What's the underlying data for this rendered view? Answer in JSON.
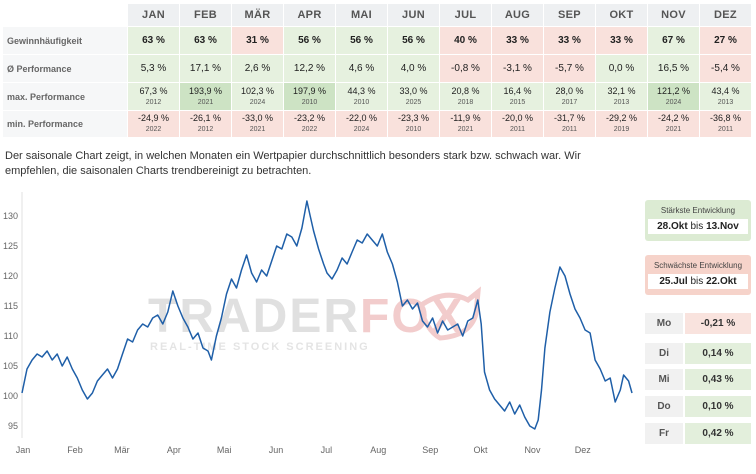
{
  "table": {
    "months": [
      "JAN",
      "FEB",
      "MÄR",
      "APR",
      "MAI",
      "JUN",
      "JUL",
      "AUG",
      "SEP",
      "OKT",
      "NOV",
      "DEZ"
    ],
    "rows": [
      {
        "label": "Gewinnhäufigkeit",
        "cells": [
          {
            "v": "63 %",
            "t": "g"
          },
          {
            "v": "63 %",
            "t": "g"
          },
          {
            "v": "31 %",
            "t": "r"
          },
          {
            "v": "56 %",
            "t": "g"
          },
          {
            "v": "56 %",
            "t": "g"
          },
          {
            "v": "56 %",
            "t": "g"
          },
          {
            "v": "40 %",
            "t": "r"
          },
          {
            "v": "33 %",
            "t": "r"
          },
          {
            "v": "33 %",
            "t": "r"
          },
          {
            "v": "33 %",
            "t": "r"
          },
          {
            "v": "67 %",
            "t": "g"
          },
          {
            "v": "27 %",
            "t": "r"
          }
        ]
      },
      {
        "label": "Ø Performance",
        "cells": [
          {
            "v": "5,3 %",
            "t": "g"
          },
          {
            "v": "17,1 %",
            "t": "g"
          },
          {
            "v": "2,6 %",
            "t": "g"
          },
          {
            "v": "12,2 %",
            "t": "g"
          },
          {
            "v": "4,6 %",
            "t": "g"
          },
          {
            "v": "4,0 %",
            "t": "g"
          },
          {
            "v": "-0,8 %",
            "t": "r"
          },
          {
            "v": "-3,1 %",
            "t": "r"
          },
          {
            "v": "-5,7 %",
            "t": "r"
          },
          {
            "v": "0,0 %",
            "t": "g"
          },
          {
            "v": "16,5 %",
            "t": "g"
          },
          {
            "v": "-5,4 %",
            "t": "r"
          }
        ]
      },
      {
        "label": "max. Performance",
        "cells": [
          {
            "v": "67,3 %",
            "y": "2012",
            "t": "g"
          },
          {
            "v": "193,9 %",
            "y": "2021",
            "t": "gs"
          },
          {
            "v": "102,3 %",
            "y": "2024",
            "t": "g"
          },
          {
            "v": "197,9 %",
            "y": "2010",
            "t": "gs"
          },
          {
            "v": "44,3 %",
            "y": "2010",
            "t": "g"
          },
          {
            "v": "33,0 %",
            "y": "2025",
            "t": "g"
          },
          {
            "v": "20,8 %",
            "y": "2018",
            "t": "g"
          },
          {
            "v": "16,4 %",
            "y": "2015",
            "t": "g"
          },
          {
            "v": "28,0 %",
            "y": "2017",
            "t": "g"
          },
          {
            "v": "32,1 %",
            "y": "2013",
            "t": "g"
          },
          {
            "v": "121,2 %",
            "y": "2024",
            "t": "gs"
          },
          {
            "v": "43,4 %",
            "y": "2013",
            "t": "g"
          }
        ]
      },
      {
        "label": "min. Performance",
        "cells": [
          {
            "v": "-24,9 %",
            "y": "2022",
            "t": "r"
          },
          {
            "v": "-26,1 %",
            "y": "2012",
            "t": "r"
          },
          {
            "v": "-33,0 %",
            "y": "2021",
            "t": "r"
          },
          {
            "v": "-23,2 %",
            "y": "2022",
            "t": "r"
          },
          {
            "v": "-22,0 %",
            "y": "2024",
            "t": "r"
          },
          {
            "v": "-23,3 %",
            "y": "2010",
            "t": "r"
          },
          {
            "v": "-11,9 %",
            "y": "2021",
            "t": "r"
          },
          {
            "v": "-20,0 %",
            "y": "2011",
            "t": "r"
          },
          {
            "v": "-31,7 %",
            "y": "2011",
            "t": "r"
          },
          {
            "v": "-29,2 %",
            "y": "2019",
            "t": "r"
          },
          {
            "v": "-24,2 %",
            "y": "2021",
            "t": "r"
          },
          {
            "v": "-36,8 %",
            "y": "2011",
            "t": "r"
          }
        ]
      }
    ]
  },
  "description": "Der saisonale Chart zeigt, in welchen Monaten ein Wertpapier durchschnittlich besonders stark bzw. schwach war. Wir empfehlen, die saisonalen Charts trendbereinigt zu betrachten.",
  "watermark": {
    "brand_main": "TRADER",
    "brand_accent": "FOX",
    "tagline": "REAL-TIME STOCK SCREENING"
  },
  "strongest": {
    "title": "Stärkste Entwicklung",
    "from": "28.Okt",
    "joiner": "bis",
    "to": "13.Nov"
  },
  "weakest": {
    "title": "Schwächste Entwicklung",
    "from": "25.Jul",
    "joiner": "bis",
    "to": "22.Okt"
  },
  "weekdays": [
    {
      "day": "Mo",
      "value": "-0,21 %",
      "sign": "neg"
    },
    {
      "day": "Di",
      "value": "0,14 %",
      "sign": "pos"
    },
    {
      "day": "Mi",
      "value": "0,43 %",
      "sign": "pos"
    },
    {
      "day": "Do",
      "value": "0,10 %",
      "sign": "pos"
    },
    {
      "day": "Fr",
      "value": "0,42 %",
      "sign": "pos"
    }
  ],
  "colors": {
    "line": "#1f5fa8",
    "positive_bg": "#e6f1df",
    "negative_bg": "#f9e1dc",
    "watermark_grey": "#c8c8c8",
    "watermark_red": "#e9a3a3"
  },
  "chart_data": {
    "type": "line",
    "title": "",
    "xlabel": "",
    "ylabel": "",
    "x_tick_labels": [
      "Jan",
      "Feb",
      "Mär",
      "Apr",
      "Mai",
      "Jun",
      "Jul",
      "Aug",
      "Sep",
      "Okt",
      "Nov",
      "Dez"
    ],
    "y_ticks": [
      95,
      100,
      105,
      110,
      115,
      120,
      125,
      130
    ],
    "ylim": [
      93,
      134
    ],
    "xlim_days": [
      1,
      365
    ],
    "grid": false,
    "series": [
      {
        "points": [
          [
            1,
            100.5
          ],
          [
            4,
            104.5
          ],
          [
            7,
            106
          ],
          [
            10,
            107
          ],
          [
            13,
            106.5
          ],
          [
            16,
            107.5
          ],
          [
            19,
            106
          ],
          [
            22,
            107
          ],
          [
            25,
            105
          ],
          [
            28,
            106.5
          ],
          [
            31,
            104.5
          ],
          [
            34,
            103
          ],
          [
            37,
            101
          ],
          [
            40,
            99.5
          ],
          [
            43,
            100.5
          ],
          [
            46,
            102.5
          ],
          [
            49,
            103.5
          ],
          [
            52,
            104.5
          ],
          [
            55,
            103
          ],
          [
            58,
            104.5
          ],
          [
            61,
            107
          ],
          [
            64,
            109.5
          ],
          [
            67,
            109
          ],
          [
            70,
            111
          ],
          [
            73,
            112
          ],
          [
            76,
            111.5
          ],
          [
            79,
            113
          ],
          [
            82,
            113.5
          ],
          [
            85,
            112
          ],
          [
            88,
            114
          ],
          [
            91,
            117.5
          ],
          [
            94,
            115
          ],
          [
            97,
            113
          ],
          [
            100,
            111.5
          ],
          [
            103,
            109.5
          ],
          [
            106,
            110.5
          ],
          [
            109,
            108
          ],
          [
            112,
            107.5
          ],
          [
            114,
            106
          ],
          [
            117,
            110
          ],
          [
            120,
            113
          ],
          [
            123,
            117
          ],
          [
            126,
            119.5
          ],
          [
            129,
            118
          ],
          [
            132,
            121
          ],
          [
            135,
            123.5
          ],
          [
            138,
            120.5
          ],
          [
            141,
            119
          ],
          [
            144,
            121
          ],
          [
            147,
            120
          ],
          [
            150,
            122.5
          ],
          [
            153,
            125
          ],
          [
            156,
            124.5
          ],
          [
            159,
            127
          ],
          [
            162,
            126.5
          ],
          [
            165,
            125
          ],
          [
            168,
            128
          ],
          [
            171,
            132.5
          ],
          [
            173,
            130
          ],
          [
            175,
            127.5
          ],
          [
            178,
            124.5
          ],
          [
            181,
            122
          ],
          [
            183,
            120.5
          ],
          [
            186,
            119.5
          ],
          [
            189,
            121
          ],
          [
            192,
            123
          ],
          [
            195,
            122
          ],
          [
            198,
            124
          ],
          [
            201,
            126
          ],
          [
            204,
            125.5
          ],
          [
            207,
            127
          ],
          [
            210,
            126
          ],
          [
            213,
            125
          ],
          [
            216,
            127
          ],
          [
            219,
            124
          ],
          [
            222,
            122
          ],
          [
            225,
            119
          ],
          [
            228,
            115
          ],
          [
            231,
            116
          ],
          [
            234,
            114.5
          ],
          [
            237,
            115.5
          ],
          [
            240,
            112.5
          ],
          [
            243,
            111.5
          ],
          [
            246,
            113
          ],
          [
            249,
            110.5
          ],
          [
            252,
            112.5
          ],
          [
            255,
            111
          ],
          [
            258,
            111.5
          ],
          [
            261,
            112
          ],
          [
            264,
            110
          ],
          [
            267,
            112.5
          ],
          [
            270,
            113
          ],
          [
            273,
            116
          ],
          [
            275,
            112
          ],
          [
            277,
            104
          ],
          [
            280,
            101
          ],
          [
            283,
            99.5
          ],
          [
            286,
            98.5
          ],
          [
            289,
            97.5
          ],
          [
            292,
            99
          ],
          [
            295,
            97
          ],
          [
            298,
            98.5
          ],
          [
            301,
            96.5
          ],
          [
            304,
            95
          ],
          [
            307,
            94.5
          ],
          [
            309,
            96
          ],
          [
            311,
            101
          ],
          [
            313,
            108
          ],
          [
            316,
            114
          ],
          [
            319,
            118
          ],
          [
            322,
            121.5
          ],
          [
            325,
            120
          ],
          [
            328,
            117
          ],
          [
            331,
            114.5
          ],
          [
            334,
            113
          ],
          [
            337,
            111
          ],
          [
            340,
            110.5
          ],
          [
            343,
            106
          ],
          [
            346,
            104.5
          ],
          [
            349,
            102.5
          ],
          [
            352,
            103
          ],
          [
            355,
            99
          ],
          [
            358,
            101
          ],
          [
            360,
            103.5
          ],
          [
            363,
            102.5
          ],
          [
            365,
            100.5
          ]
        ]
      }
    ]
  }
}
